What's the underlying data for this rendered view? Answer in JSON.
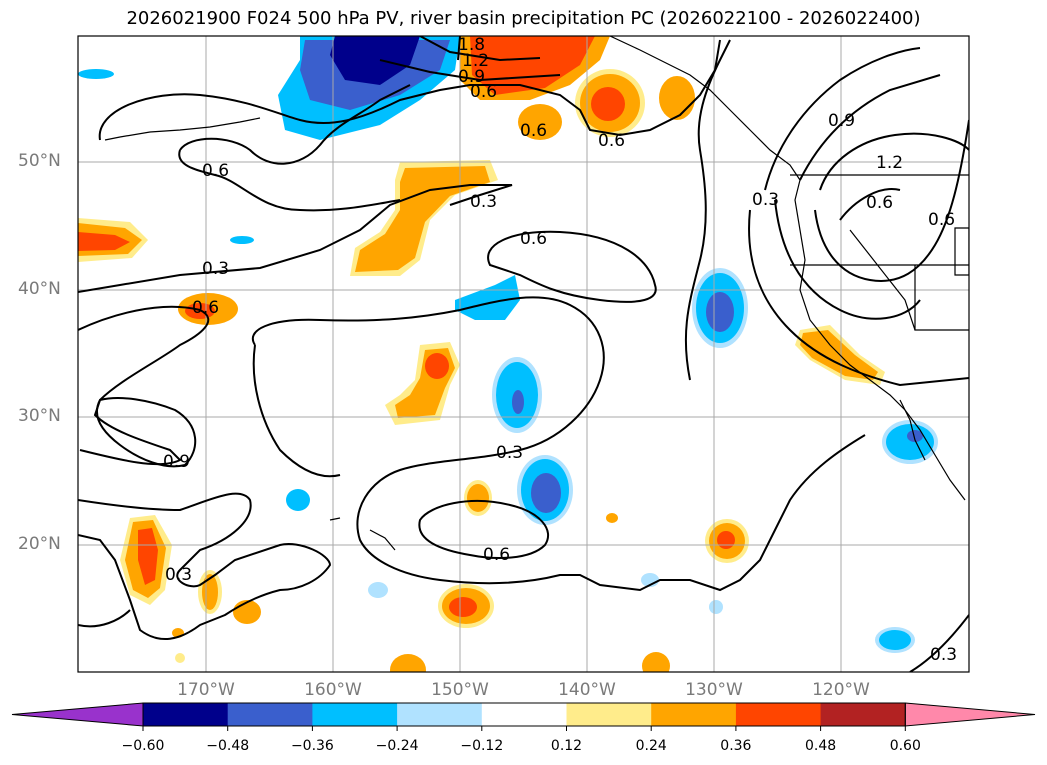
{
  "title": "2026021900 F024 500 hPa PV, river basin precipitation PC (2026022100 - 2026022400)",
  "lat_labels": [
    "50°N",
    "40°N",
    "30°N",
    "20°N"
  ],
  "lon_labels": [
    "170°W",
    "160°W",
    "150°W",
    "140°W",
    "130°W",
    "120°W"
  ],
  "colorbar": {
    "ticks": [
      "−0.60",
      "−0.48",
      "−0.36",
      "−0.24",
      "−0.12",
      "0.12",
      "0.24",
      "0.36",
      "0.48",
      "0.60"
    ],
    "colors": [
      "#9932cc",
      "#00008b",
      "#3a5fcd",
      "#00bfff",
      "#b0e2ff",
      "#ffffff",
      "#ffec8b",
      "#ffa500",
      "#ff4500",
      "#b22222",
      "#ff88aa"
    ]
  },
  "contour_labels": [
    "1.8",
    "1.2",
    "0.9",
    "0.6",
    "0.6",
    "0.6",
    "0.6",
    "0.9",
    "1.2",
    "0.3",
    "0.6",
    "0.6",
    "0.3",
    "0.6",
    "0.3",
    "0.6",
    "0.9",
    "0.3",
    "0.6",
    "0.3",
    "0.3"
  ],
  "colors": {
    "blue_fill": "#00bfff",
    "dark_blue_fill": "#3a5fcd",
    "navy_fill": "#00008b",
    "light_blue_fill": "#b0e2ff",
    "yellow_fill": "#ffec8b",
    "orange_fill": "#ffa500",
    "red_fill": "#ff4500"
  }
}
